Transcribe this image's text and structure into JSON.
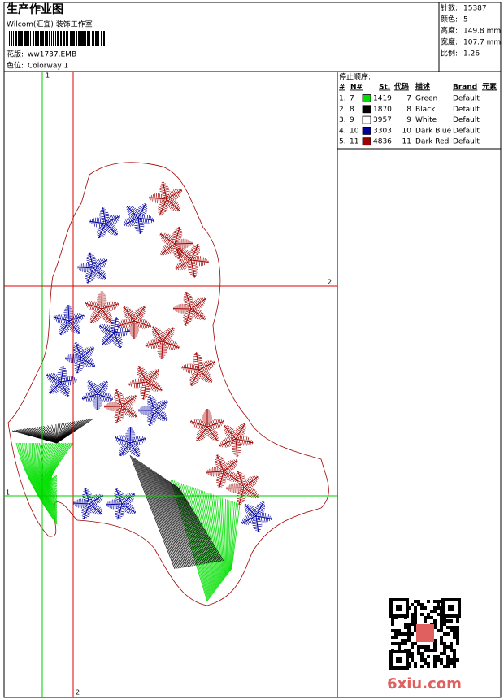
{
  "header": {
    "title": "生产作业图",
    "studio": "Wilcom(汇宜) 装饰工作室",
    "design_label": "花版:",
    "design": "ww1737.EMB",
    "colorway_label": "色位:",
    "colorway": "Colorway 1"
  },
  "info": [
    {
      "label": "针数:",
      "value": "15387"
    },
    {
      "label": "颜色:",
      "value": "5"
    },
    {
      "label": "高度:",
      "value": "149.8 mm"
    },
    {
      "label": "宽度:",
      "value": "107.7 mm"
    },
    {
      "label": "比例:",
      "value": "1.26"
    }
  ],
  "guide_labels": [
    "1",
    "2",
    "2",
    "1"
  ],
  "stop_sequence": {
    "title": "停止顺序:",
    "columns": [
      "#",
      "N#",
      "St.",
      "代码",
      "描述",
      "Brand",
      "元素"
    ],
    "rows": [
      [
        "1.",
        "7",
        "1419",
        "7",
        "Green",
        "Default"
      ],
      [
        "2.",
        "8",
        "1870",
        "8",
        "Black",
        "Default"
      ],
      [
        "3.",
        "9",
        "3957",
        "9",
        "White",
        "Default"
      ],
      [
        "4.",
        "10",
        "3303",
        "10",
        "Dark Blue",
        "Default"
      ],
      [
        "5.",
        "11",
        "4836",
        "11",
        "Dark Red",
        "Default"
      ]
    ],
    "swatches": [
      "#00e000",
      "#000000",
      "#ffffff",
      "#0000a0",
      "#a00000"
    ]
  },
  "watermark": "6xiu.com"
}
